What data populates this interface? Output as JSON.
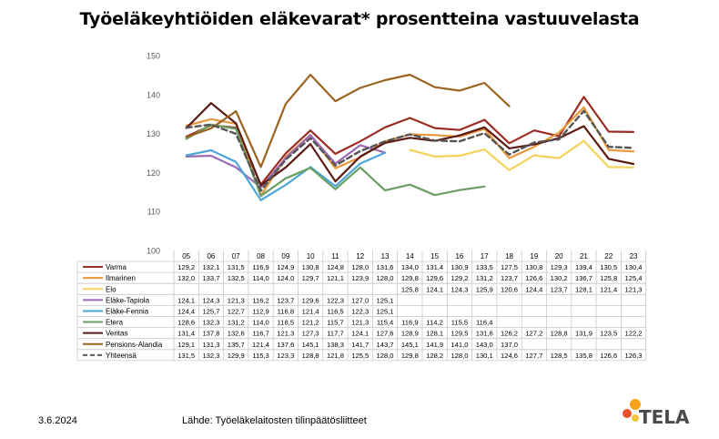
{
  "title": "Työeläkeyhtiöiden eläkevarat* prosentteina vastuuvelasta",
  "footer": {
    "date": "3.6.2024",
    "source": "Lähde: Työeläkelaitosten tilinpäätösliitteet"
  },
  "logo": {
    "text": "TELA",
    "colors": [
      "#f7a21b",
      "#e8542a",
      "#f7c23b"
    ]
  },
  "chart_data": {
    "type": "line",
    "title": "Työeläkeyhtiöiden eläkevarat* prosentteina vastuuvelasta",
    "xlabel": "",
    "ylabel": "",
    "ylim": [
      100,
      150
    ],
    "yticks": [
      "100",
      "110",
      "120",
      "130",
      "140",
      "150"
    ],
    "grid": false,
    "legend": "table-below",
    "categories": [
      "05",
      "06",
      "07",
      "08",
      "09",
      "10",
      "11",
      "12",
      "13",
      "14",
      "15",
      "16",
      "17",
      "18",
      "19",
      "20",
      "21",
      "22",
      "23"
    ],
    "series": [
      {
        "name": "Varma",
        "color": "#9b2d24",
        "dash": false,
        "labels": [
          "129,2",
          "132,1",
          "131,5",
          "116,9",
          "124,9",
          "130,8",
          "124,8",
          "128,0",
          "131,6",
          "134,0",
          "131,4",
          "130,9",
          "133,5",
          "127,5",
          "130,8",
          "129,3",
          "139,4",
          "130,5",
          "130,4"
        ],
        "values": [
          129.2,
          132.1,
          131.5,
          116.9,
          124.9,
          130.8,
          124.8,
          128.0,
          131.6,
          134.0,
          131.4,
          130.9,
          133.5,
          127.5,
          130.8,
          129.3,
          139.4,
          130.5,
          130.4
        ]
      },
      {
        "name": "Ilmarinen",
        "color": "#e8973a",
        "dash": false,
        "labels": [
          "132,0",
          "133,7",
          "132,5",
          "114,0",
          "124,0",
          "129,7",
          "121,1",
          "123,9",
          "128,0",
          "129,8",
          "129,6",
          "129,2",
          "131,2",
          "123,7",
          "126,6",
          "130,2",
          "136,7",
          "125,8",
          "125,4"
        ],
        "values": [
          132.0,
          133.7,
          132.5,
          114.0,
          124.0,
          129.7,
          121.1,
          123.9,
          128.0,
          129.8,
          129.6,
          129.2,
          131.2,
          123.7,
          126.6,
          130.2,
          136.7,
          125.8,
          125.4
        ]
      },
      {
        "name": "Elo",
        "color": "#f5d35a",
        "dash": false,
        "labels": [
          "",
          "",
          "",
          "",
          "",
          "",
          "",
          "",
          "",
          "125,8",
          "124,1",
          "124,3",
          "125,9",
          "120,6",
          "124,4",
          "123,7",
          "128,1",
          "121,4",
          "121,3"
        ],
        "values": [
          null,
          null,
          null,
          null,
          null,
          null,
          null,
          null,
          null,
          125.8,
          124.1,
          124.3,
          125.9,
          120.6,
          124.4,
          123.7,
          128.1,
          121.4,
          121.3
        ]
      },
      {
        "name": "Eläke-Tapiola",
        "color": "#9b6bb5",
        "dash": false,
        "labels": [
          "124,1",
          "124,3",
          "121,3",
          "116,2",
          "123,7",
          "129,6",
          "122,3",
          "127,0",
          "125,1",
          "",
          "",
          "",
          "",
          "",
          "",
          "",
          "",
          "",
          ""
        ],
        "values": [
          124.1,
          124.3,
          121.3,
          116.2,
          123.7,
          129.6,
          122.3,
          127.0,
          125.1,
          null,
          null,
          null,
          null,
          null,
          null,
          null,
          null,
          null,
          null
        ]
      },
      {
        "name": "Eläke-Fennia",
        "color": "#4da6d9",
        "dash": false,
        "labels": [
          "124,4",
          "125,7",
          "122,7",
          "112,9",
          "116,8",
          "121,4",
          "116,5",
          "122,3",
          "125,1",
          "",
          "",
          "",
          "",
          "",
          "",
          "",
          "",
          "",
          ""
        ],
        "values": [
          124.4,
          125.7,
          122.7,
          112.9,
          116.8,
          121.4,
          116.5,
          122.3,
          125.1,
          null,
          null,
          null,
          null,
          null,
          null,
          null,
          null,
          null,
          null
        ]
      },
      {
        "name": "Etera",
        "color": "#6a9e62",
        "dash": false,
        "labels": [
          "128,6",
          "132,3",
          "131,2",
          "114,0",
          "118,5",
          "121,2",
          "115,7",
          "121,3",
          "115,4",
          "116,9",
          "114,2",
          "115,5",
          "116,4",
          "",
          "",
          "",
          "",
          "",
          ""
        ],
        "values": [
          128.6,
          132.3,
          131.2,
          114.0,
          118.5,
          121.2,
          115.7,
          121.3,
          115.4,
          116.9,
          114.2,
          115.5,
          116.4,
          null,
          null,
          null,
          null,
          null,
          null
        ]
      },
      {
        "name": "Veritas",
        "color": "#5c1a14",
        "dash": false,
        "labels": [
          "131,4",
          "137,8",
          "132,6",
          "116,7",
          "121,3",
          "127,3",
          "117,7",
          "124,1",
          "127,6",
          "128,9",
          "128,1",
          "129,5",
          "131,6",
          "126,2",
          "127,2",
          "128,8",
          "131,9",
          "123,5",
          "122,2"
        ],
        "values": [
          131.4,
          137.8,
          132.6,
          116.7,
          121.3,
          127.3,
          117.7,
          124.1,
          127.6,
          128.9,
          128.1,
          129.5,
          131.6,
          126.2,
          127.2,
          128.8,
          131.9,
          123.5,
          122.2
        ]
      },
      {
        "name": "Pensions-Alandia",
        "color": "#9a6420",
        "dash": false,
        "labels": [
          "129,1",
          "131,3",
          "135,7",
          "121,4",
          "137,6",
          "145,1",
          "138,3",
          "141,7",
          "143,7",
          "145,1",
          "141,9",
          "141,0",
          "143,0",
          "137,0",
          "",
          "",
          "",
          "",
          ""
        ],
        "values": [
          129.1,
          131.3,
          135.7,
          121.4,
          137.6,
          145.1,
          138.3,
          141.7,
          143.7,
          145.1,
          141.9,
          141.0,
          143.0,
          137.0,
          null,
          null,
          null,
          null,
          null
        ]
      },
      {
        "name": "Yhteensä",
        "color": "#555555",
        "dash": true,
        "labels": [
          "131,5",
          "132,3",
          "129,9",
          "115,3",
          "123,3",
          "128,8",
          "121,8",
          "125,5",
          "128,0",
          "129,8",
          "128,2",
          "128,0",
          "130,1",
          "124,6",
          "127,7",
          "128,5",
          "135,8",
          "126,6",
          "126,3"
        ],
        "values": [
          131.5,
          132.3,
          129.9,
          115.3,
          123.3,
          128.8,
          121.8,
          125.5,
          128.0,
          129.8,
          128.2,
          128.0,
          130.1,
          124.6,
          127.7,
          128.5,
          135.8,
          126.6,
          126.3
        ]
      }
    ]
  }
}
